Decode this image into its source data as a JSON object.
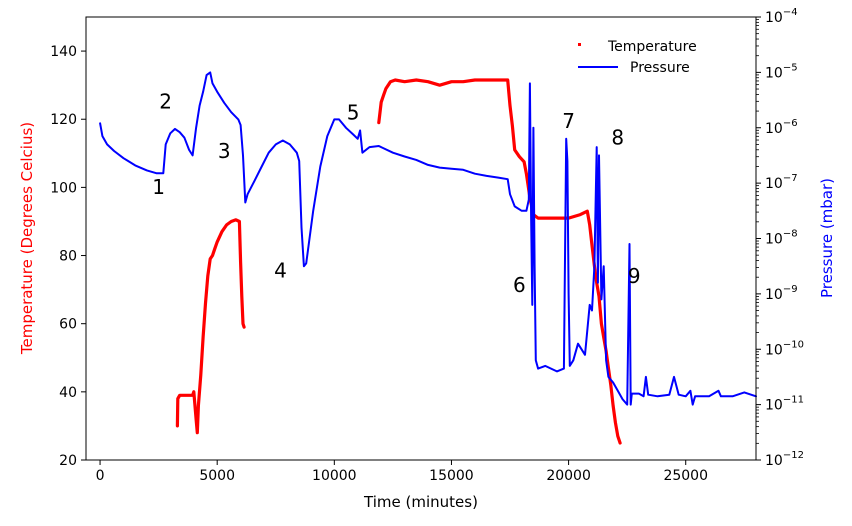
{
  "chart_data": {
    "type": "line",
    "title": "",
    "xlabel": "Time (minutes)",
    "ylabel_left": "Temperature (Degrees Celcius)",
    "ylabel_right": "Pressure (mbar)",
    "xlim": [
      -600,
      28000
    ],
    "ylim_left": [
      20,
      150
    ],
    "ylim_right_log10": [
      -12,
      -4
    ],
    "x_ticks": [
      0,
      5000,
      10000,
      15000,
      20000,
      25000
    ],
    "x_tick_labels": [
      "0",
      "5000",
      "10000",
      "15000",
      "20000",
      "25000"
    ],
    "y_left_ticks": [
      20,
      40,
      60,
      80,
      100,
      120,
      140
    ],
    "y_left_tick_labels": [
      "20",
      "40",
      "60",
      "80",
      "100",
      "120",
      "140"
    ],
    "y_right_ticks_exp": [
      -12,
      -11,
      -10,
      -9,
      -8,
      -7,
      -6,
      -5,
      -4
    ],
    "y_right_tick_labels": [
      "10",
      "10",
      "10",
      "10",
      "10",
      "10",
      "10",
      "10",
      "10"
    ],
    "y_right_tick_exponents": [
      "−12",
      "−11",
      "−10",
      "−9",
      "−8",
      "−7",
      "−6",
      "−5",
      "−4"
    ],
    "legend_position": "top-right",
    "grid": false,
    "colors": {
      "temperature": "#ff0000",
      "pressure": "#0000ff",
      "axis": "#000000"
    },
    "series": [
      {
        "name": "Temperature",
        "axis": "left",
        "marker": "point",
        "segments": [
          [
            [
              3300,
              30
            ],
            [
              3320,
              38
            ],
            [
              3400,
              39
            ],
            [
              3600,
              39
            ],
            [
              3800,
              39
            ],
            [
              3950,
              39
            ],
            [
              4000,
              40
            ],
            [
              4100,
              32
            ],
            [
              4150,
              28
            ],
            [
              4200,
              36
            ],
            [
              4300,
              45
            ],
            [
              4400,
              56
            ],
            [
              4500,
              66
            ],
            [
              4600,
              74
            ],
            [
              4700,
              79
            ],
            [
              4800,
              80
            ],
            [
              4900,
              82
            ],
            [
              5000,
              84
            ],
            [
              5200,
              87
            ],
            [
              5400,
              89
            ],
            [
              5600,
              90
            ],
            [
              5800,
              90.5
            ],
            [
              5950,
              90
            ],
            [
              6000,
              78
            ],
            [
              6050,
              68
            ],
            [
              6100,
              60
            ],
            [
              6150,
              59
            ]
          ],
          [
            [
              11900,
              119
            ],
            [
              11950,
              122
            ],
            [
              12000,
              125
            ],
            [
              12100,
              127
            ],
            [
              12200,
              129
            ],
            [
              12400,
              131
            ],
            [
              12600,
              131.5
            ],
            [
              13000,
              131
            ],
            [
              13500,
              131.5
            ],
            [
              14000,
              131
            ],
            [
              14500,
              130
            ],
            [
              15000,
              131
            ],
            [
              15500,
              131
            ],
            [
              16000,
              131.5
            ],
            [
              16500,
              131.5
            ],
            [
              17000,
              131.5
            ],
            [
              17400,
              131.5
            ],
            [
              17500,
              124
            ],
            [
              17600,
              118
            ],
            [
              17700,
              111
            ],
            [
              17900,
              109
            ],
            [
              18100,
              107.5
            ],
            [
              18200,
              104
            ],
            [
              18350,
              97
            ],
            [
              18500,
              92
            ],
            [
              18700,
              91
            ],
            [
              19000,
              91
            ],
            [
              19500,
              91
            ],
            [
              20000,
              91
            ],
            [
              20500,
              92
            ],
            [
              20800,
              93
            ],
            [
              20900,
              89
            ],
            [
              21000,
              83
            ],
            [
              21100,
              77
            ],
            [
              21200,
              72
            ],
            [
              21300,
              68
            ],
            [
              21400,
              60
            ],
            [
              21500,
              56
            ],
            [
              21600,
              52
            ],
            [
              21700,
              47
            ],
            [
              21800,
              42
            ],
            [
              21900,
              36
            ],
            [
              22000,
              31
            ],
            [
              22100,
              27
            ],
            [
              22200,
              25
            ]
          ]
        ]
      },
      {
        "name": "Pressure",
        "axis": "right",
        "marker": "line",
        "segments": [
          [
            [
              0,
              -5.92
            ],
            [
              100,
              -6.15
            ],
            [
              300,
              -6.3
            ],
            [
              600,
              -6.42
            ],
            [
              1000,
              -6.55
            ],
            [
              1500,
              -6.68
            ],
            [
              2000,
              -6.77
            ],
            [
              2400,
              -6.82
            ],
            [
              2700,
              -6.82
            ],
            [
              2800,
              -6.3
            ],
            [
              3000,
              -6.1
            ],
            [
              3200,
              -6.02
            ],
            [
              3400,
              -6.08
            ],
            [
              3600,
              -6.18
            ],
            [
              3800,
              -6.4
            ],
            [
              3950,
              -6.5
            ],
            [
              4100,
              -6.0
            ],
            [
              4250,
              -5.6
            ],
            [
              4400,
              -5.35
            ],
            [
              4550,
              -5.05
            ],
            [
              4700,
              -5.0
            ],
            [
              4800,
              -5.2
            ],
            [
              5000,
              -5.35
            ],
            [
              5300,
              -5.55
            ],
            [
              5600,
              -5.72
            ],
            [
              5900,
              -5.85
            ],
            [
              6000,
              -5.95
            ],
            [
              6100,
              -6.5
            ],
            [
              6200,
              -7.35
            ],
            [
              6300,
              -7.2
            ],
            [
              6600,
              -6.95
            ],
            [
              6900,
              -6.7
            ],
            [
              7200,
              -6.45
            ],
            [
              7500,
              -6.3
            ],
            [
              7800,
              -6.23
            ],
            [
              8100,
              -6.3
            ],
            [
              8400,
              -6.45
            ],
            [
              8500,
              -6.6
            ],
            [
              8600,
              -7.8
            ],
            [
              8700,
              -8.5
            ],
            [
              8800,
              -8.45
            ],
            [
              9100,
              -7.5
            ],
            [
              9400,
              -6.7
            ],
            [
              9700,
              -6.15
            ],
            [
              10000,
              -5.85
            ],
            [
              10200,
              -5.85
            ],
            [
              10500,
              -6.0
            ],
            [
              10800,
              -6.12
            ],
            [
              11000,
              -6.2
            ],
            [
              11100,
              -6.05
            ],
            [
              11200,
              -6.45
            ],
            [
              11500,
              -6.35
            ],
            [
              11900,
              -6.33
            ],
            [
              12500,
              -6.45
            ],
            [
              13000,
              -6.52
            ],
            [
              13500,
              -6.58
            ],
            [
              14000,
              -6.67
            ],
            [
              14500,
              -6.72
            ],
            [
              15000,
              -6.74
            ],
            [
              15500,
              -6.76
            ],
            [
              16000,
              -6.83
            ],
            [
              16500,
              -6.87
            ],
            [
              17000,
              -6.9
            ],
            [
              17400,
              -6.93
            ],
            [
              17500,
              -7.2
            ],
            [
              17700,
              -7.42
            ],
            [
              18000,
              -7.5
            ],
            [
              18200,
              -7.5
            ],
            [
              18300,
              -7.3
            ],
            [
              18350,
              -5.2
            ],
            [
              18400,
              -7.6
            ],
            [
              18450,
              -9.2
            ],
            [
              18500,
              -6.0
            ],
            [
              18550,
              -8.5
            ],
            [
              18600,
              -10.2
            ],
            [
              18700,
              -10.35
            ],
            [
              19000,
              -10.3
            ],
            [
              19500,
              -10.4
            ],
            [
              19800,
              -10.35
            ],
            [
              19900,
              -6.2
            ],
            [
              19950,
              -6.6
            ],
            [
              20000,
              -9.0
            ],
            [
              20050,
              -10.3
            ],
            [
              20200,
              -10.2
            ],
            [
              20400,
              -9.9
            ],
            [
              20700,
              -10.1
            ],
            [
              20900,
              -9.2
            ],
            [
              21000,
              -9.3
            ],
            [
              21100,
              -8.5
            ],
            [
              21200,
              -6.35
            ],
            [
              21250,
              -8.8
            ],
            [
              21300,
              -6.5
            ],
            [
              21400,
              -9.1
            ],
            [
              21500,
              -8.5
            ],
            [
              21600,
              -10.2
            ],
            [
              21700,
              -10.5
            ],
            [
              21900,
              -10.6
            ],
            [
              22100,
              -10.75
            ],
            [
              22300,
              -10.9
            ],
            [
              22500,
              -11.0
            ],
            [
              22600,
              -8.1
            ],
            [
              22650,
              -11.0
            ],
            [
              22700,
              -10.8
            ],
            [
              23000,
              -10.8
            ],
            [
              23200,
              -10.85
            ],
            [
              23300,
              -10.5
            ],
            [
              23400,
              -10.82
            ],
            [
              23800,
              -10.85
            ],
            [
              24300,
              -10.82
            ],
            [
              24500,
              -10.5
            ],
            [
              24700,
              -10.82
            ],
            [
              25000,
              -10.85
            ],
            [
              25200,
              -10.75
            ],
            [
              25300,
              -11.0
            ],
            [
              25400,
              -10.85
            ],
            [
              26000,
              -10.85
            ],
            [
              26400,
              -10.75
            ],
            [
              26500,
              -10.85
            ],
            [
              27000,
              -10.85
            ],
            [
              27500,
              -10.78
            ],
            [
              28000,
              -10.85
            ]
          ]
        ]
      }
    ],
    "annotations": [
      {
        "text": "1",
        "x": 2500,
        "y_log10": -7.2
      },
      {
        "text": "2",
        "x": 2800,
        "y_log10": -5.65
      },
      {
        "text": "3",
        "x": 5300,
        "y_log10": -6.55
      },
      {
        "text": "4",
        "x": 7700,
        "y_log10": -8.7
      },
      {
        "text": "5",
        "x": 10800,
        "y_log10": -5.85
      },
      {
        "text": "6",
        "x": 17900,
        "y_log10": -8.97
      },
      {
        "text": "7",
        "x": 20000,
        "y_log10": -6.0
      },
      {
        "text": "8",
        "x": 22100,
        "y_log10": -6.3
      },
      {
        "text": "9",
        "x": 22800,
        "y_log10": -8.8
      }
    ]
  }
}
